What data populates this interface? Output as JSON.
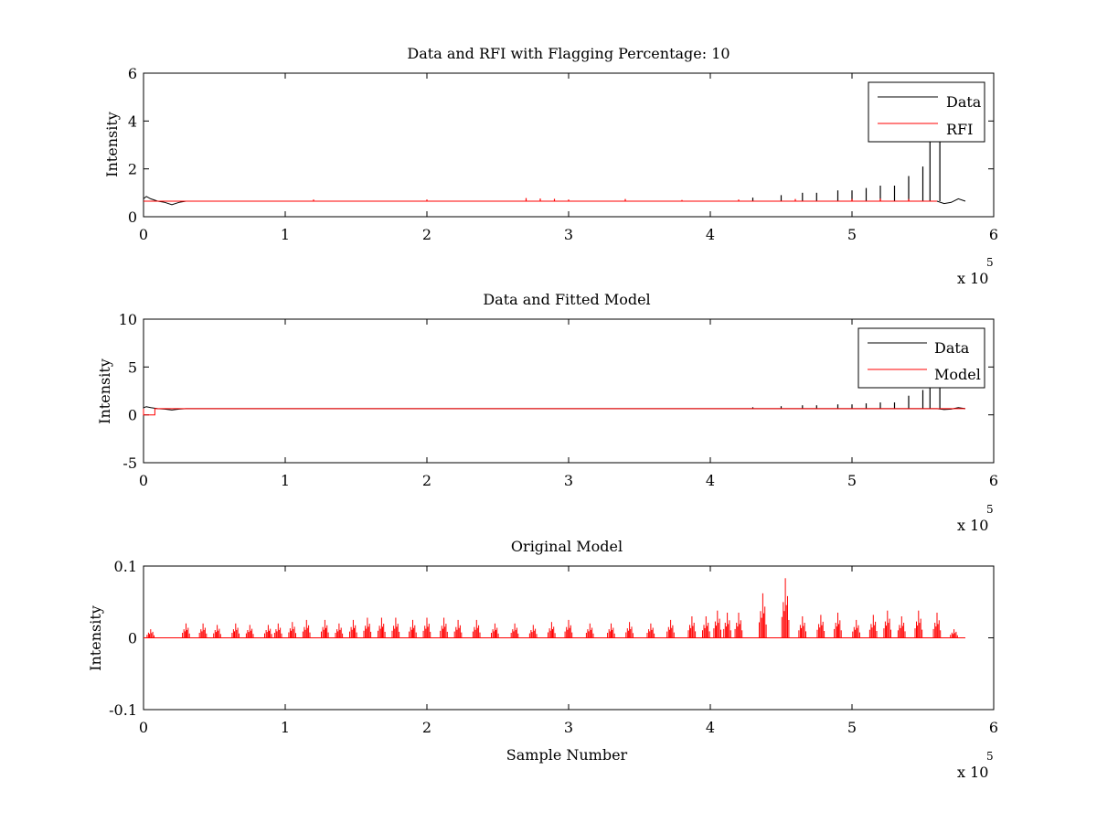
{
  "colors": {
    "data": "#000000",
    "red": "#ff0000",
    "axes": "#000000",
    "background": "#ffffff"
  },
  "chart_data": [
    {
      "type": "line",
      "title": "Data and RFI with Flagging Percentage: 10",
      "xlabel": "",
      "ylabel": "Intensity",
      "xlim": [
        0,
        600000
      ],
      "ylim": [
        0,
        6
      ],
      "xticks": [
        0,
        1,
        2,
        3,
        4,
        5,
        6
      ],
      "yticks": [
        0,
        2,
        4,
        6
      ],
      "xtick_labels": [
        "0",
        "1",
        "2",
        "3",
        "4",
        "5",
        "6"
      ],
      "ytick_labels": [
        "0",
        "2",
        "4",
        "6"
      ],
      "x_multiplier_label": "x 10",
      "x_multiplier_exponent": "5",
      "legend": {
        "position": "top-right",
        "entries": [
          "Data",
          "RFI"
        ]
      },
      "series": [
        {
          "name": "Data",
          "color": "#000000",
          "baseline": 0.65,
          "x_end": 580000,
          "dip_points": [
            [
              0,
              0.75
            ],
            [
              2000,
              0.85
            ],
            [
              5000,
              0.75
            ],
            [
              10000,
              0.65
            ],
            [
              15000,
              0.6
            ],
            [
              20000,
              0.5
            ],
            [
              25000,
              0.6
            ],
            [
              30000,
              0.65
            ],
            [
              40000,
              0.65
            ],
            [
              560000,
              0.65
            ],
            [
              565000,
              0.55
            ],
            [
              570000,
              0.6
            ],
            [
              575000,
              0.75
            ],
            [
              580000,
              0.65
            ]
          ],
          "spikes": [
            [
              430000,
              0.8
            ],
            [
              450000,
              0.9
            ],
            [
              465000,
              1.0
            ],
            [
              475000,
              1.0
            ],
            [
              490000,
              1.1
            ],
            [
              500000,
              1.1
            ],
            [
              510000,
              1.2
            ],
            [
              520000,
              1.3
            ],
            [
              530000,
              1.3
            ],
            [
              540000,
              1.7
            ],
            [
              550000,
              2.1
            ],
            [
              555000,
              3.4
            ],
            [
              562000,
              4.0
            ]
          ]
        },
        {
          "name": "RFI",
          "color": "#ff0000",
          "baseline": 0.65,
          "x_end": 560000,
          "spikes": [
            [
              120000,
              0.72
            ],
            [
              200000,
              0.72
            ],
            [
              270000,
              0.78
            ],
            [
              280000,
              0.76
            ],
            [
              290000,
              0.75
            ],
            [
              300000,
              0.72
            ],
            [
              340000,
              0.74
            ],
            [
              380000,
              0.7
            ],
            [
              420000,
              0.72
            ],
            [
              460000,
              0.74
            ],
            [
              500000,
              0.74
            ],
            [
              520000,
              0.76
            ],
            [
              540000,
              0.74
            ]
          ]
        }
      ]
    },
    {
      "type": "line",
      "title": "Data and Fitted Model",
      "xlabel": "",
      "ylabel": "Intensity",
      "xlim": [
        0,
        600000
      ],
      "ylim": [
        -5,
        10
      ],
      "xticks": [
        0,
        1,
        2,
        3,
        4,
        5,
        6
      ],
      "yticks": [
        -5,
        0,
        5,
        10
      ],
      "xtick_labels": [
        "0",
        "1",
        "2",
        "3",
        "4",
        "5",
        "6"
      ],
      "ytick_labels": [
        "-5",
        "0",
        "5",
        "10"
      ],
      "x_multiplier_label": "x 10",
      "x_multiplier_exponent": "5",
      "legend": {
        "position": "top-right",
        "entries": [
          "Data",
          "Model"
        ]
      },
      "series": [
        {
          "name": "Data",
          "color": "#000000",
          "baseline": 0.65,
          "x_end": 580000,
          "dip_points": [
            [
              0,
              0.75
            ],
            [
              2000,
              0.85
            ],
            [
              5000,
              0.75
            ],
            [
              10000,
              0.65
            ],
            [
              15000,
              0.6
            ],
            [
              20000,
              0.5
            ],
            [
              25000,
              0.6
            ],
            [
              30000,
              0.65
            ],
            [
              40000,
              0.65
            ],
            [
              560000,
              0.65
            ],
            [
              565000,
              0.55
            ],
            [
              570000,
              0.6
            ],
            [
              575000,
              0.75
            ],
            [
              580000,
              0.65
            ]
          ],
          "spikes": [
            [
              430000,
              0.8
            ],
            [
              450000,
              0.9
            ],
            [
              465000,
              1.0
            ],
            [
              475000,
              1.0
            ],
            [
              490000,
              1.1
            ],
            [
              500000,
              1.1
            ],
            [
              510000,
              1.2
            ],
            [
              520000,
              1.3
            ],
            [
              530000,
              1.3
            ],
            [
              540000,
              2.0
            ],
            [
              550000,
              2.6
            ],
            [
              555000,
              3.4
            ],
            [
              562000,
              4.0
            ]
          ]
        },
        {
          "name": "Model",
          "color": "#ff0000",
          "baseline": 0.65,
          "x_end": 580000,
          "step_points": [
            [
              0,
              0.65
            ],
            [
              0,
              0.0
            ],
            [
              8000,
              0.0
            ],
            [
              8000,
              0.65
            ],
            [
              580000,
              0.65
            ]
          ]
        }
      ]
    },
    {
      "type": "line",
      "title": "Original Model",
      "xlabel": "Sample Number",
      "ylabel": "Intensity",
      "xlim": [
        0,
        600000
      ],
      "ylim": [
        -0.1,
        0.1
      ],
      "xticks": [
        0,
        1,
        2,
        3,
        4,
        5,
        6
      ],
      "yticks": [
        -0.1,
        0,
        0.1
      ],
      "xtick_labels": [
        "0",
        "1",
        "2",
        "3",
        "4",
        "5",
        "6"
      ],
      "ytick_labels": [
        "-0.1",
        "0",
        "0.1"
      ],
      "x_multiplier_label": "x 10",
      "x_multiplier_exponent": "5",
      "series": [
        {
          "color": "#ff0000",
          "baseline": 0.0,
          "x_end": 580000,
          "bursts": [
            [
              5000,
              0.012
            ],
            [
              30000,
              0.02
            ],
            [
              42000,
              0.02
            ],
            [
              52000,
              0.018
            ],
            [
              65000,
              0.02
            ],
            [
              75000,
              0.018
            ],
            [
              88000,
              0.018
            ],
            [
              95000,
              0.02
            ],
            [
              105000,
              0.022
            ],
            [
              115000,
              0.025
            ],
            [
              128000,
              0.025
            ],
            [
              138000,
              0.02
            ],
            [
              148000,
              0.025
            ],
            [
              158000,
              0.028
            ],
            [
              168000,
              0.028
            ],
            [
              178000,
              0.028
            ],
            [
              190000,
              0.025
            ],
            [
              200000,
              0.028
            ],
            [
              212000,
              0.028
            ],
            [
              222000,
              0.025
            ],
            [
              235000,
              0.025
            ],
            [
              248000,
              0.02
            ],
            [
              262000,
              0.02
            ],
            [
              275000,
              0.018
            ],
            [
              288000,
              0.022
            ],
            [
              300000,
              0.025
            ],
            [
              315000,
              0.02
            ],
            [
              330000,
              0.02
            ],
            [
              343000,
              0.022
            ],
            [
              358000,
              0.02
            ],
            [
              372000,
              0.025
            ],
            [
              387000,
              0.03
            ],
            [
              397000,
              0.03
            ],
            [
              405000,
              0.038
            ],
            [
              412000,
              0.035
            ],
            [
              420000,
              0.035
            ],
            [
              437000,
              0.062
            ],
            [
              453000,
              0.083
            ],
            [
              465000,
              0.03
            ],
            [
              478000,
              0.032
            ],
            [
              490000,
              0.035
            ],
            [
              503000,
              0.025
            ],
            [
              515000,
              0.032
            ],
            [
              525000,
              0.038
            ],
            [
              535000,
              0.03
            ],
            [
              547000,
              0.038
            ],
            [
              560000,
              0.035
            ],
            [
              572000,
              0.012
            ]
          ]
        }
      ]
    }
  ]
}
